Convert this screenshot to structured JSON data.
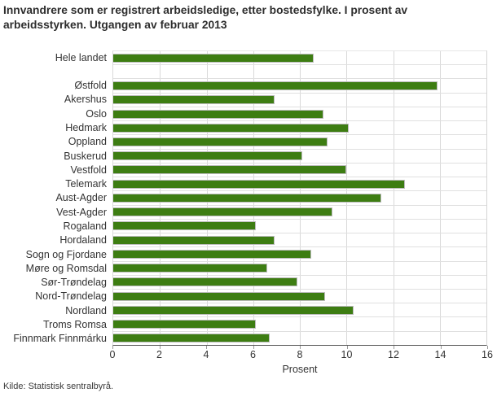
{
  "title": "Innvandrere som er registrert arbeidsledige, etter bostedsfylke. I prosent av arbeidsstyrken. Utgangen av februar 2013",
  "source": "Kilde: Statistisk sentralbyrå.",
  "colors": {
    "bar": "#3d7d12",
    "bar_border": "#bcbcbc",
    "gridline": "#d9d9d9",
    "row_separator": "#e0e0e0",
    "axis_line": "#5a5a5a",
    "text": "#333333",
    "title_text": "#2d2d2d"
  },
  "chart_data": {
    "type": "bar",
    "orientation": "horizontal",
    "title": "Innvandrere som er registrert arbeidsledige, etter bostedsfylke. I prosent av arbeidsstyrken. Utgangen av februar 2013",
    "xlabel": "Prosent",
    "ylabel": "",
    "xlim": [
      0,
      16
    ],
    "xticks": [
      0,
      2,
      4,
      6,
      8,
      10,
      12,
      14,
      16
    ],
    "grid": true,
    "legend": "none",
    "blank_row_after_index": 0,
    "categories": [
      "Hele landet",
      "Østfold",
      "Akershus",
      "Oslo",
      "Hedmark",
      "Oppland",
      "Buskerud",
      "Vestfold",
      "Telemark",
      "Aust-Agder",
      "Vest-Agder",
      "Rogaland",
      "Hordaland",
      "Sogn og Fjordane",
      "Møre og Romsdal",
      "Sør-Trøndelag",
      "Nord-Trøndelag",
      "Nordland",
      "Troms Romsa",
      "Finnmark Finnmárku"
    ],
    "values": [
      8.6,
      13.9,
      6.9,
      9.0,
      10.1,
      9.2,
      8.1,
      10.0,
      12.5,
      11.5,
      9.4,
      6.1,
      6.9,
      8.5,
      6.6,
      7.9,
      9.1,
      10.3,
      6.1,
      6.7
    ]
  }
}
